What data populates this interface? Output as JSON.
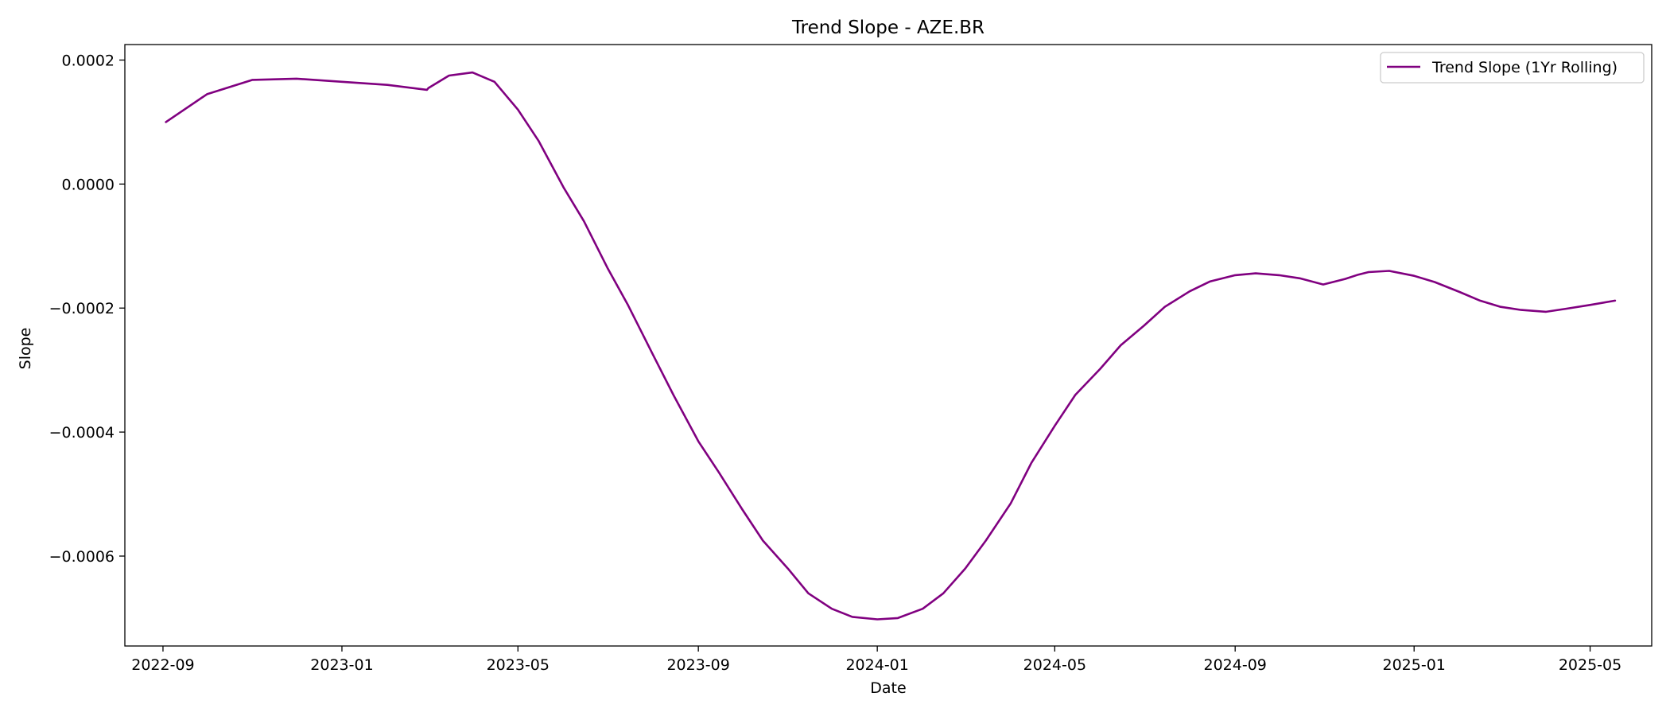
{
  "chart_data": {
    "type": "line",
    "title": "Trend Slope - AZE.BR",
    "xlabel": "Date",
    "ylabel": "Slope",
    "xlim": [
      "2022-08-06",
      "2025-06-12"
    ],
    "ylim": [
      -0.000745,
      0.000225
    ],
    "x_ticks": [
      {
        "date": "2022-09-01",
        "label": "2022-09"
      },
      {
        "date": "2023-01-01",
        "label": "2023-01"
      },
      {
        "date": "2023-05-01",
        "label": "2023-05"
      },
      {
        "date": "2023-09-01",
        "label": "2023-09"
      },
      {
        "date": "2024-01-01",
        "label": "2024-01"
      },
      {
        "date": "2024-05-01",
        "label": "2024-05"
      },
      {
        "date": "2024-09-01",
        "label": "2024-09"
      },
      {
        "date": "2025-01-01",
        "label": "2025-01"
      },
      {
        "date": "2025-05-01",
        "label": "2025-05"
      }
    ],
    "y_ticks": [
      {
        "value": 0.0002,
        "label": "0.0002"
      },
      {
        "value": 0.0,
        "label": "0.0000"
      },
      {
        "value": -0.0002,
        "label": "−0.0002"
      },
      {
        "value": -0.0004,
        "label": "−0.0004"
      },
      {
        "value": -0.0006,
        "label": "−0.0006"
      }
    ],
    "grid": false,
    "legend": "top-right",
    "series": [
      {
        "name": "Trend Slope (1Yr Rolling)",
        "color": "#800080",
        "x": [
          "2022-09-03",
          "2022-10-01",
          "2022-11-01",
          "2022-12-01",
          "2023-01-01",
          "2023-02-01",
          "2023-02-28",
          "2023-03-01",
          "2023-03-15",
          "2023-03-31",
          "2023-04-15",
          "2023-05-01",
          "2023-05-15",
          "2023-06-01",
          "2023-06-15",
          "2023-07-01",
          "2023-07-15",
          "2023-08-01",
          "2023-08-15",
          "2023-09-01",
          "2023-09-15",
          "2023-10-01",
          "2023-10-15",
          "2023-11-01",
          "2023-11-15",
          "2023-12-01",
          "2023-12-15",
          "2024-01-01",
          "2024-01-15",
          "2024-02-01",
          "2024-02-15",
          "2024-03-01",
          "2024-03-15",
          "2024-04-01",
          "2024-04-15",
          "2024-05-01",
          "2024-05-15",
          "2024-06-01",
          "2024-06-15",
          "2024-07-01",
          "2024-07-15",
          "2024-08-01",
          "2024-08-15",
          "2024-09-01",
          "2024-09-15",
          "2024-10-01",
          "2024-10-15",
          "2024-10-31",
          "2024-11-15",
          "2024-11-24",
          "2024-12-01",
          "2024-12-15",
          "2025-01-01",
          "2025-01-15",
          "2025-02-01",
          "2025-02-15",
          "2025-03-01",
          "2025-03-15",
          "2025-04-01",
          "2025-04-15",
          "2025-05-01",
          "2025-05-18"
        ],
        "y": [
          0.0001,
          0.000145,
          0.000168,
          0.00017,
          0.000165,
          0.00016,
          0.000152,
          0.000155,
          0.000175,
          0.00018,
          0.000165,
          0.00012,
          7e-05,
          -5e-06,
          -6e-05,
          -0.000135,
          -0.000195,
          -0.000275,
          -0.00034,
          -0.000415,
          -0.000465,
          -0.000525,
          -0.000575,
          -0.00062,
          -0.00066,
          -0.000685,
          -0.000698,
          -0.000702,
          -0.0007,
          -0.000685,
          -0.00066,
          -0.00062,
          -0.000575,
          -0.000515,
          -0.00045,
          -0.00039,
          -0.00034,
          -0.000298,
          -0.00026,
          -0.000228,
          -0.000198,
          -0.000173,
          -0.000157,
          -0.000147,
          -0.000144,
          -0.000147,
          -0.000152,
          -0.000162,
          -0.000153,
          -0.000146,
          -0.000142,
          -0.00014,
          -0.000148,
          -0.000158,
          -0.000174,
          -0.000188,
          -0.000198,
          -0.000203,
          -0.000206,
          -0.000201,
          -0.000195,
          -0.000188
        ]
      }
    ]
  }
}
